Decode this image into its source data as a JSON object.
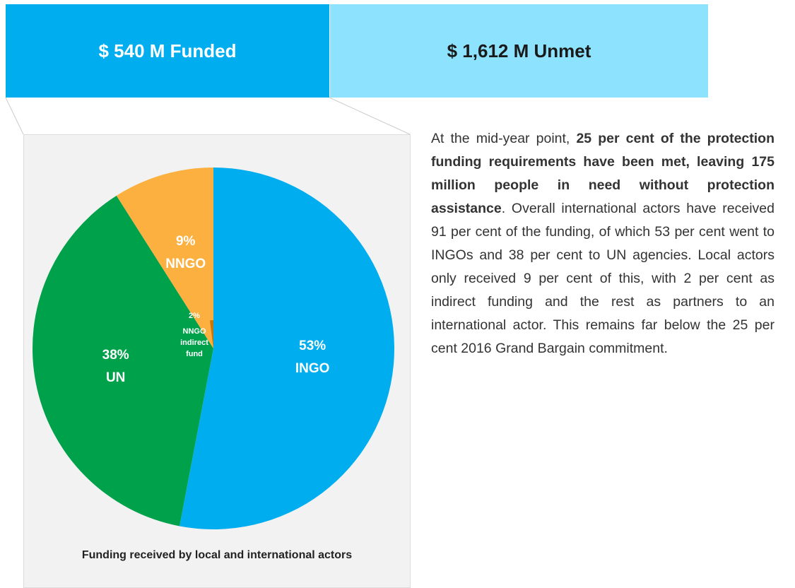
{
  "banner": {
    "funded": "$ 540 M Funded",
    "unmet": "$ 1,612 M Unmet"
  },
  "chart_data": {
    "type": "pie",
    "title": "Funding received by local and international actors",
    "categories": [
      "INGO",
      "UN",
      "NNGO",
      "NNGO indirect fund"
    ],
    "values": [
      53,
      38,
      9,
      2
    ],
    "value_labels": [
      "53%",
      "38%",
      "9%",
      "2%"
    ],
    "colors": [
      "#00aeef",
      "#00a14b",
      "#fbb040",
      "#c8760a"
    ]
  },
  "text": {
    "before": "At the mid-year point, ",
    "bold": "25 per cent of the protection funding requirements have been met, leaving 175 million people in need without protection assistance",
    "after": ". Overall international actors have received 91 per cent of the funding, of which 53 per cent went to INGOs and 38 per cent to UN agencies. Local actors only received 9 per cent of this, with 2 per cent as indirect funding and the rest as partners to an international actor. This remains far below the 25 per cent 2016 Grand Bargain commitment."
  }
}
